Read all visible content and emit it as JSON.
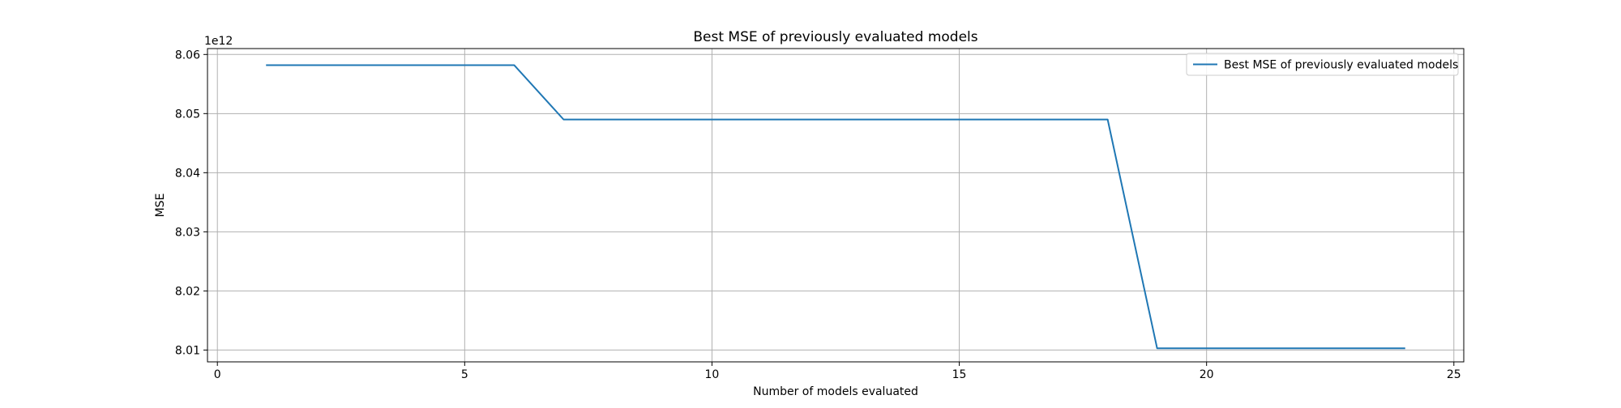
{
  "chart_data": {
    "type": "line",
    "title": "Best MSE of previously evaluated models",
    "xlabel": "Number of models evaluated",
    "ylabel": "MSE",
    "y_offset_text": "1e12",
    "xlim": [
      -0.2,
      25.2
    ],
    "ylim": [
      8.008,
      8.061
    ],
    "x_ticks": [
      0,
      5,
      10,
      15,
      20,
      25
    ],
    "x_tick_labels": [
      "0",
      "5",
      "10",
      "15",
      "20",
      "25"
    ],
    "y_ticks": [
      8.01,
      8.02,
      8.03,
      8.04,
      8.05,
      8.06
    ],
    "y_tick_labels": [
      "8.01",
      "8.02",
      "8.03",
      "8.04",
      "8.05",
      "8.06"
    ],
    "y_units_note": "y values in units of 1e12",
    "grid": true,
    "legend_position": "upper right",
    "colors": {
      "series": "#1f77b4",
      "grid": "#b0b0b0",
      "axes": "#000000"
    },
    "series": [
      {
        "name": "Best MSE of previously evaluated models",
        "x": [
          1,
          2,
          3,
          4,
          5,
          6,
          7,
          8,
          9,
          10,
          11,
          12,
          13,
          14,
          15,
          16,
          17,
          18,
          19,
          20,
          21,
          22,
          23,
          24
        ],
        "values": [
          8.0582,
          8.0582,
          8.0582,
          8.0582,
          8.0582,
          8.0582,
          8.049,
          8.049,
          8.049,
          8.049,
          8.049,
          8.049,
          8.049,
          8.049,
          8.049,
          8.049,
          8.049,
          8.049,
          8.0103,
          8.0103,
          8.0103,
          8.0103,
          8.0103,
          8.0103
        ]
      }
    ]
  }
}
